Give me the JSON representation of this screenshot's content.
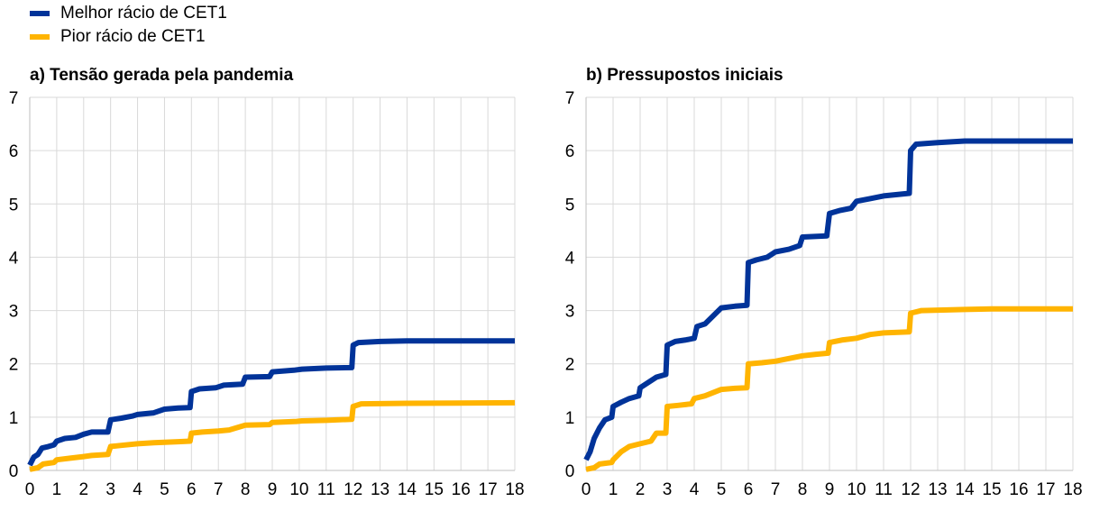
{
  "legend": {
    "items": [
      {
        "label": "Melhor rácio de CET1",
        "color": "#003399"
      },
      {
        "label": "Pior rácio de CET1",
        "color": "#ffb400"
      }
    ]
  },
  "chart_data": [
    {
      "type": "line",
      "title": "a) Tensão gerada pela pandemia",
      "xlim": [
        0,
        18
      ],
      "ylim": [
        0,
        7
      ],
      "xticks": [
        0,
        1,
        2,
        3,
        4,
        5,
        6,
        7,
        8,
        9,
        10,
        11,
        12,
        13,
        14,
        15,
        16,
        17,
        18
      ],
      "yticks": [
        0,
        1,
        2,
        3,
        4,
        5,
        6,
        7
      ],
      "grid": true,
      "legend": "top-left",
      "series": [
        {
          "name": "Melhor rácio de CET1",
          "color": "#003399",
          "points": [
            [
              0,
              0.1
            ],
            [
              0.15,
              0.25
            ],
            [
              0.3,
              0.3
            ],
            [
              0.45,
              0.42
            ],
            [
              0.7,
              0.45
            ],
            [
              0.9,
              0.48
            ],
            [
              1,
              0.55
            ],
            [
              1.3,
              0.6
            ],
            [
              1.7,
              0.62
            ],
            [
              2,
              0.68
            ],
            [
              2.3,
              0.72
            ],
            [
              2.9,
              0.72
            ],
            [
              3,
              0.95
            ],
            [
              3.4,
              0.98
            ],
            [
              3.8,
              1.02
            ],
            [
              4,
              1.05
            ],
            [
              4.6,
              1.08
            ],
            [
              5,
              1.15
            ],
            [
              5.5,
              1.17
            ],
            [
              5.95,
              1.18
            ],
            [
              6,
              1.48
            ],
            [
              6.3,
              1.53
            ],
            [
              6.9,
              1.55
            ],
            [
              7.2,
              1.6
            ],
            [
              7.9,
              1.62
            ],
            [
              8,
              1.75
            ],
            [
              8.9,
              1.76
            ],
            [
              9,
              1.85
            ],
            [
              9.8,
              1.88
            ],
            [
              10.1,
              1.9
            ],
            [
              11,
              1.92
            ],
            [
              11.95,
              1.93
            ],
            [
              12,
              2.35
            ],
            [
              12.2,
              2.4
            ],
            [
              13,
              2.42
            ],
            [
              14,
              2.43
            ],
            [
              18,
              2.43
            ]
          ]
        },
        {
          "name": "Pior rácio de CET1",
          "color": "#ffb400",
          "points": [
            [
              0,
              0.02
            ],
            [
              0.3,
              0.05
            ],
            [
              0.5,
              0.12
            ],
            [
              0.9,
              0.15
            ],
            [
              1,
              0.2
            ],
            [
              1.5,
              0.23
            ],
            [
              2,
              0.26
            ],
            [
              2.3,
              0.28
            ],
            [
              2.9,
              0.3
            ],
            [
              3,
              0.45
            ],
            [
              3.4,
              0.47
            ],
            [
              4,
              0.5
            ],
            [
              4.6,
              0.52
            ],
            [
              5,
              0.53
            ],
            [
              5.5,
              0.54
            ],
            [
              5.95,
              0.55
            ],
            [
              6,
              0.7
            ],
            [
              6.4,
              0.72
            ],
            [
              7,
              0.74
            ],
            [
              7.4,
              0.76
            ],
            [
              8,
              0.85
            ],
            [
              8.9,
              0.86
            ],
            [
              9,
              0.9
            ],
            [
              9.9,
              0.92
            ],
            [
              10.1,
              0.93
            ],
            [
              11,
              0.94
            ],
            [
              11.95,
              0.96
            ],
            [
              12,
              1.2
            ],
            [
              12.3,
              1.25
            ],
            [
              14,
              1.26
            ],
            [
              18,
              1.27
            ]
          ]
        }
      ]
    },
    {
      "type": "line",
      "title": "b) Pressupostos iniciais",
      "xlim": [
        0,
        18
      ],
      "ylim": [
        0,
        7
      ],
      "xticks": [
        0,
        1,
        2,
        3,
        4,
        5,
        6,
        7,
        8,
        9,
        10,
        11,
        12,
        13,
        14,
        15,
        16,
        17,
        18
      ],
      "yticks": [
        0,
        1,
        2,
        3,
        4,
        5,
        6,
        7
      ],
      "grid": true,
      "legend": "top-left",
      "series": [
        {
          "name": "Melhor rácio de CET1",
          "color": "#003399",
          "points": [
            [
              0,
              0.2
            ],
            [
              0.15,
              0.35
            ],
            [
              0.3,
              0.6
            ],
            [
              0.5,
              0.8
            ],
            [
              0.7,
              0.95
            ],
            [
              0.95,
              1.0
            ],
            [
              1,
              1.2
            ],
            [
              1.3,
              1.28
            ],
            [
              1.6,
              1.35
            ],
            [
              1.95,
              1.4
            ],
            [
              2,
              1.55
            ],
            [
              2.3,
              1.65
            ],
            [
              2.6,
              1.75
            ],
            [
              2.95,
              1.8
            ],
            [
              3,
              2.35
            ],
            [
              3.3,
              2.42
            ],
            [
              3.7,
              2.45
            ],
            [
              4,
              2.48
            ],
            [
              4.1,
              2.7
            ],
            [
              4.4,
              2.75
            ],
            [
              4.7,
              2.9
            ],
            [
              5,
              3.05
            ],
            [
              5.5,
              3.08
            ],
            [
              5.95,
              3.1
            ],
            [
              6,
              3.9
            ],
            [
              6.3,
              3.95
            ],
            [
              6.7,
              4.0
            ],
            [
              7,
              4.1
            ],
            [
              7.5,
              4.15
            ],
            [
              7.9,
              4.22
            ],
            [
              8,
              4.38
            ],
            [
              8.9,
              4.4
            ],
            [
              9,
              4.82
            ],
            [
              9.4,
              4.88
            ],
            [
              9.8,
              4.92
            ],
            [
              10,
              5.05
            ],
            [
              10.5,
              5.1
            ],
            [
              11,
              5.15
            ],
            [
              11.95,
              5.2
            ],
            [
              12,
              6.0
            ],
            [
              12.2,
              6.12
            ],
            [
              13,
              6.15
            ],
            [
              14,
              6.18
            ],
            [
              18,
              6.18
            ]
          ]
        },
        {
          "name": "Pior rácio de CET1",
          "color": "#ffb400",
          "points": [
            [
              0,
              0.02
            ],
            [
              0.3,
              0.05
            ],
            [
              0.5,
              0.12
            ],
            [
              0.95,
              0.15
            ],
            [
              1,
              0.2
            ],
            [
              1.3,
              0.35
            ],
            [
              1.6,
              0.45
            ],
            [
              2,
              0.5
            ],
            [
              2.4,
              0.55
            ],
            [
              2.6,
              0.7
            ],
            [
              2.95,
              0.7
            ],
            [
              3,
              1.2
            ],
            [
              3.4,
              1.22
            ],
            [
              3.9,
              1.25
            ],
            [
              4,
              1.35
            ],
            [
              4.4,
              1.4
            ],
            [
              5,
              1.52
            ],
            [
              5.5,
              1.54
            ],
            [
              5.95,
              1.55
            ],
            [
              6,
              2.0
            ],
            [
              6.5,
              2.02
            ],
            [
              7,
              2.05
            ],
            [
              7.5,
              2.1
            ],
            [
              8,
              2.15
            ],
            [
              8.5,
              2.18
            ],
            [
              8.95,
              2.2
            ],
            [
              9,
              2.4
            ],
            [
              9.5,
              2.45
            ],
            [
              10,
              2.48
            ],
            [
              10.5,
              2.55
            ],
            [
              11,
              2.58
            ],
            [
              11.95,
              2.6
            ],
            [
              12,
              2.95
            ],
            [
              12.4,
              3.0
            ],
            [
              14,
              3.02
            ],
            [
              15,
              3.03
            ],
            [
              18,
              3.03
            ]
          ]
        }
      ]
    }
  ]
}
